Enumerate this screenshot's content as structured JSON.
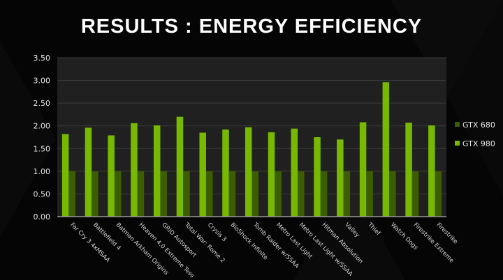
{
  "title": "RESULTS : ENERGY EFFICIENCY",
  "chart_data": {
    "type": "bar",
    "title": "RESULTS : ENERGY EFFICIENCY",
    "xlabel": "",
    "ylabel": "",
    "ylim": [
      0,
      3.5
    ],
    "yticks": [
      "0.00",
      "0.50",
      "1.00",
      "1.50",
      "2.00",
      "2.50",
      "3.00",
      "3.50"
    ],
    "grid": true,
    "legend": "right",
    "categories": [
      "Far Cry 3 4xMSAA",
      "Battlefield 4",
      "Batman Arkham Origins",
      "Heaven 4.0 Extreme Tess",
      "GRID Autosport",
      "Total War: Rome 2",
      "Crysis 3",
      "BioShock Infinite",
      "Tomb Raider w/SSAA",
      "Metro Last Light",
      "Metro Last Light w/SSAA",
      "Hitman Absolution",
      "Valley",
      "Thief",
      "Watch Dogs",
      "Firestrike Extreme",
      "Firestrike"
    ],
    "series": [
      {
        "name": "GTX 680",
        "color": "#3d5e00",
        "values": [
          1,
          1,
          1,
          1,
          1,
          1,
          1,
          1,
          1,
          1,
          1,
          1,
          1,
          1,
          1,
          1,
          1
        ]
      },
      {
        "name": "GTX 980",
        "color": "#76b900",
        "values": [
          1.82,
          1.96,
          1.79,
          2.06,
          2.01,
          2.2,
          1.85,
          1.92,
          1.97,
          1.86,
          1.94,
          1.75,
          1.7,
          2.08,
          2.96,
          2.07,
          2.01
        ]
      }
    ]
  }
}
